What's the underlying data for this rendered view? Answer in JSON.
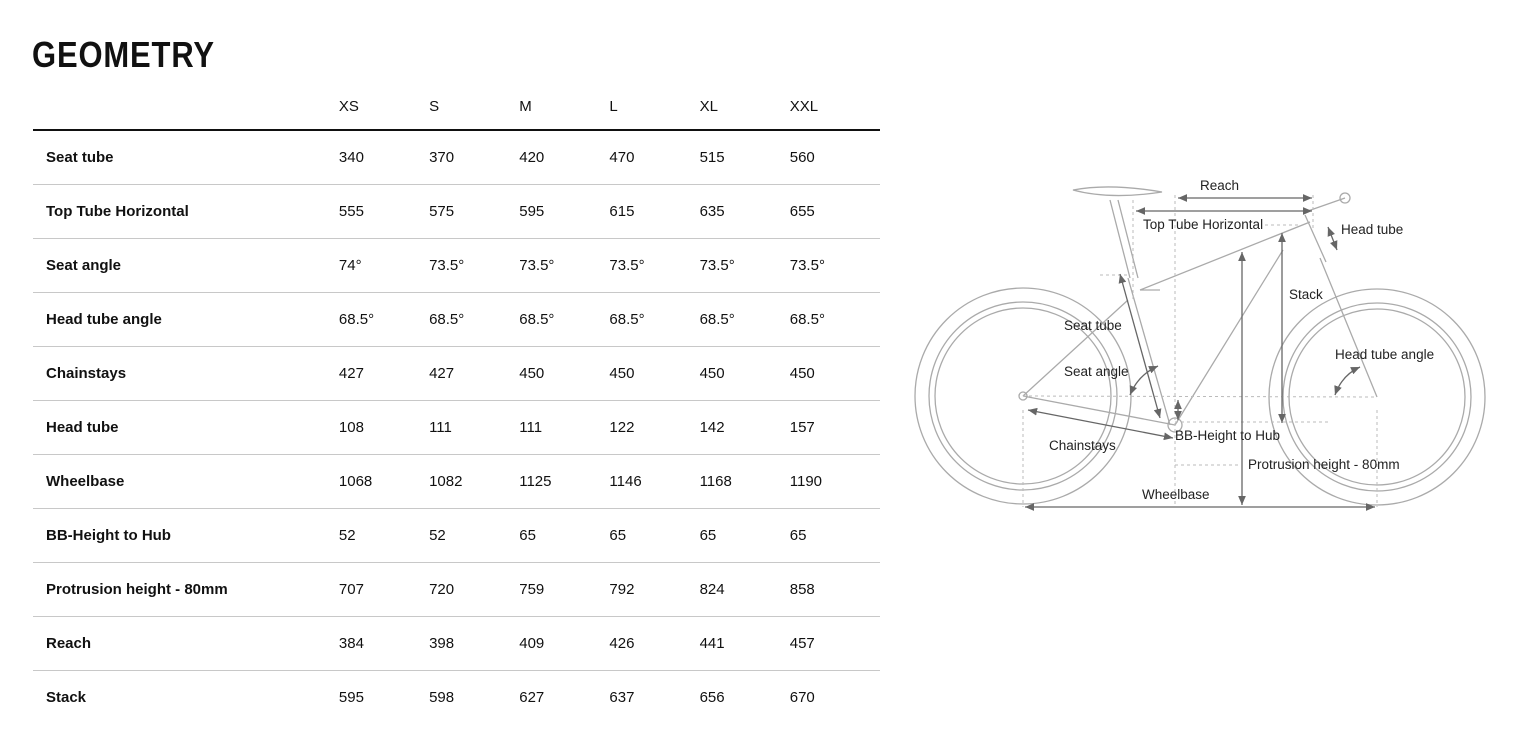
{
  "title": "GEOMETRY",
  "table": {
    "sizes": [
      "XS",
      "S",
      "M",
      "L",
      "XL",
      "XXL"
    ],
    "rows": [
      {
        "label": "Seat tube",
        "values": [
          "340",
          "370",
          "420",
          "470",
          "515",
          "560"
        ]
      },
      {
        "label": "Top Tube Horizontal",
        "values": [
          "555",
          "575",
          "595",
          "615",
          "635",
          "655"
        ]
      },
      {
        "label": "Seat angle",
        "values": [
          "74°",
          "73.5°",
          "73.5°",
          "73.5°",
          "73.5°",
          "73.5°"
        ]
      },
      {
        "label": "Head tube angle",
        "values": [
          "68.5°",
          "68.5°",
          "68.5°",
          "68.5°",
          "68.5°",
          "68.5°"
        ]
      },
      {
        "label": "Chainstays",
        "values": [
          "427",
          "427",
          "450",
          "450",
          "450",
          "450"
        ]
      },
      {
        "label": "Head tube",
        "values": [
          "108",
          "111",
          "111",
          "122",
          "142",
          "157"
        ]
      },
      {
        "label": "Wheelbase",
        "values": [
          "1068",
          "1082",
          "1125",
          "1146",
          "1168",
          "1190"
        ]
      },
      {
        "label": "BB-Height to Hub",
        "values": [
          "52",
          "52",
          "65",
          "65",
          "65",
          "65"
        ]
      },
      {
        "label": "Protrusion height - 80mm",
        "values": [
          "707",
          "720",
          "759",
          "792",
          "824",
          "858"
        ]
      },
      {
        "label": "Reach",
        "values": [
          "384",
          "398",
          "409",
          "426",
          "441",
          "457"
        ]
      },
      {
        "label": "Stack",
        "values": [
          "595",
          "598",
          "627",
          "637",
          "656",
          "670"
        ]
      }
    ]
  },
  "diagram": {
    "reach": "Reach",
    "top_tube": "Top Tube Horizontal",
    "head_tube": "Head tube",
    "stack": "Stack",
    "seat_tube": "Seat tube",
    "head_tube_angle": "Head tube angle",
    "seat_angle": "Seat angle",
    "bb_height": "BB-Height to Hub",
    "chainstays": "Chainstays",
    "protrusion": "Protrusion height - 80mm",
    "wheelbase": "Wheelbase"
  }
}
